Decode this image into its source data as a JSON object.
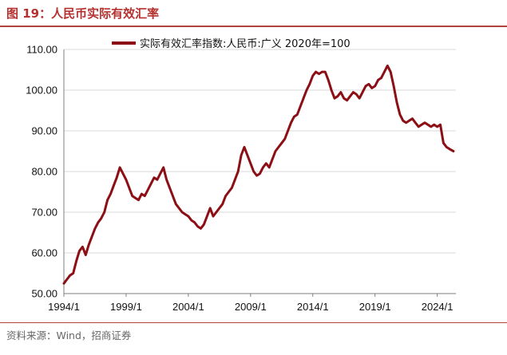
{
  "figure": {
    "title": "图 19：人民币实际有效汇率",
    "source": "资料来源：Wind，招商证券"
  },
  "colors": {
    "accent": "#b5312f",
    "series": "#8b0f14",
    "grid": "#d9d9d9"
  },
  "chart_data": {
    "type": "line",
    "title": "",
    "xlabel": "",
    "ylabel": "",
    "x_ticks": [
      "1994/1",
      "1999/1",
      "2004/1",
      "2009/1",
      "2014/1",
      "2019/1",
      "2024/1"
    ],
    "y_ticks": [
      "50.00",
      "60.00",
      "70.00",
      "80.00",
      "90.00",
      "100.00",
      "110.00"
    ],
    "xlim": [
      1994.0,
      2025.5
    ],
    "ylim": [
      50,
      110
    ],
    "grid": true,
    "legend_position": "top-center",
    "series": [
      {
        "name": "实际有效汇率指数:人民币:广义 2020年=100",
        "x": [
          1994.0,
          1994.25,
          1994.5,
          1994.75,
          1995.0,
          1995.25,
          1995.5,
          1995.75,
          1996.0,
          1996.25,
          1996.5,
          1996.75,
          1997.0,
          1997.25,
          1997.5,
          1997.75,
          1998.0,
          1998.25,
          1998.5,
          1998.75,
          1999.0,
          1999.25,
          1999.5,
          1999.75,
          2000.0,
          2000.25,
          2000.5,
          2000.75,
          2001.0,
          2001.25,
          2001.5,
          2001.75,
          2002.0,
          2002.25,
          2002.5,
          2002.75,
          2003.0,
          2003.25,
          2003.5,
          2003.75,
          2004.0,
          2004.25,
          2004.5,
          2004.75,
          2005.0,
          2005.25,
          2005.5,
          2005.75,
          2006.0,
          2006.25,
          2006.5,
          2006.75,
          2007.0,
          2007.25,
          2007.5,
          2007.75,
          2008.0,
          2008.25,
          2008.5,
          2008.75,
          2009.0,
          2009.25,
          2009.5,
          2009.75,
          2010.0,
          2010.25,
          2010.5,
          2010.75,
          2011.0,
          2011.25,
          2011.5,
          2011.75,
          2012.0,
          2012.25,
          2012.5,
          2012.75,
          2013.0,
          2013.25,
          2013.5,
          2013.75,
          2014.0,
          2014.25,
          2014.5,
          2014.75,
          2015.0,
          2015.25,
          2015.5,
          2015.75,
          2016.0,
          2016.25,
          2016.5,
          2016.75,
          2017.0,
          2017.25,
          2017.5,
          2017.75,
          2018.0,
          2018.25,
          2018.5,
          2018.75,
          2019.0,
          2019.25,
          2019.5,
          2019.75,
          2020.0,
          2020.25,
          2020.5,
          2020.75,
          2021.0,
          2021.25,
          2021.5,
          2021.75,
          2022.0,
          2022.25,
          2022.5,
          2022.75,
          2023.0,
          2023.25,
          2023.5,
          2023.75,
          2024.0,
          2024.25,
          2024.5,
          2024.75,
          2025.0,
          2025.3
        ],
        "values": [
          52.5,
          53.5,
          54.5,
          55.0,
          58.0,
          60.5,
          61.5,
          59.5,
          62.0,
          64.0,
          66.0,
          67.5,
          68.5,
          70.0,
          73.0,
          74.5,
          76.5,
          78.5,
          81.0,
          79.5,
          78.0,
          76.0,
          74.0,
          73.5,
          73.0,
          74.5,
          74.0,
          75.5,
          77.0,
          78.5,
          78.0,
          79.5,
          81.0,
          78.0,
          76.0,
          74.0,
          72.0,
          71.0,
          70.0,
          69.5,
          69.0,
          68.0,
          67.5,
          66.5,
          66.0,
          67.0,
          69.0,
          71.0,
          69.0,
          70.0,
          71.0,
          72.0,
          74.0,
          75.0,
          76.0,
          78.0,
          80.0,
          84.0,
          86.0,
          84.0,
          82.0,
          80.0,
          79.0,
          79.5,
          81.0,
          82.0,
          81.0,
          83.0,
          85.0,
          86.0,
          87.0,
          88.0,
          90.0,
          92.0,
          93.5,
          94.0,
          96.0,
          98.0,
          100.0,
          101.5,
          103.5,
          104.5,
          104.0,
          104.5,
          104.5,
          102.5,
          100.0,
          98.0,
          98.5,
          99.5,
          98.0,
          97.5,
          98.5,
          99.5,
          99.0,
          98.0,
          99.5,
          101.0,
          101.5,
          100.5,
          101.0,
          102.5,
          103.0,
          104.5,
          106.0,
          104.5,
          101.0,
          97.0,
          94.0,
          92.5,
          92.0,
          92.5,
          93.0,
          92.0,
          91.0,
          91.5,
          92.0,
          91.5,
          91.0,
          91.5,
          91.0,
          91.5,
          87.0,
          86.0,
          85.5,
          85.0
        ]
      }
    ]
  }
}
